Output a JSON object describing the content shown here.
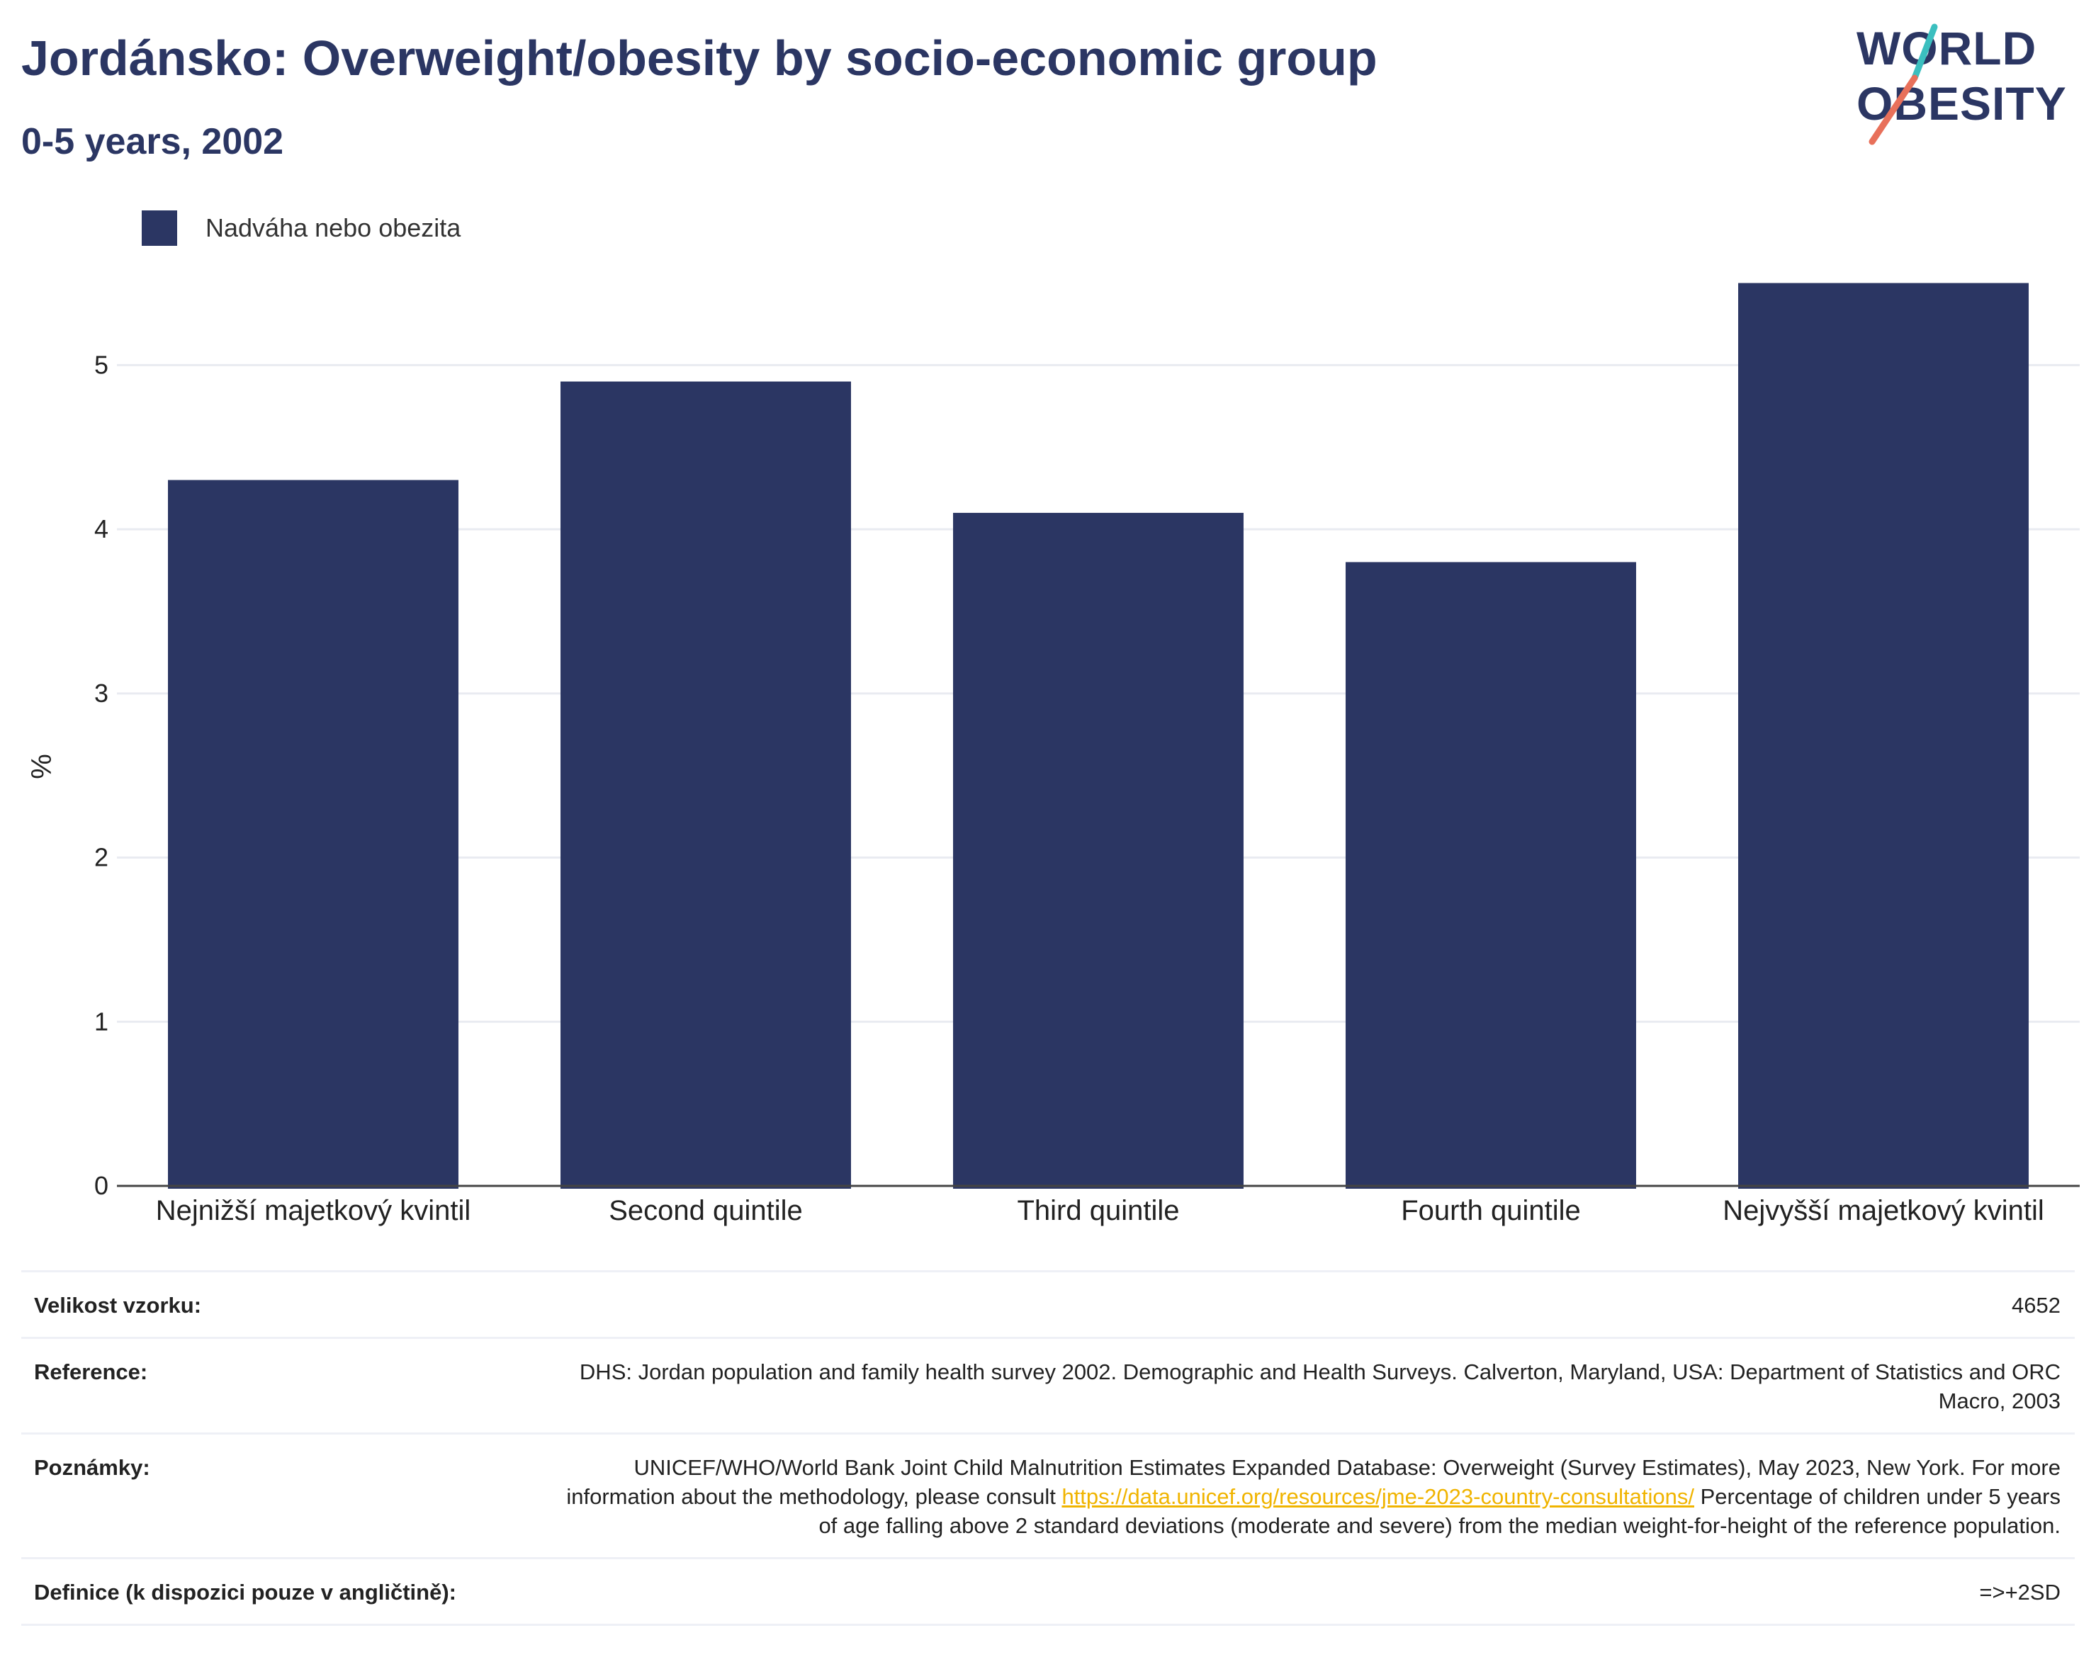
{
  "header": {
    "title": "Jordánsko: Overweight/obesity by socio-economic group",
    "subtitle": "0-5 years, 2002"
  },
  "logo": {
    "line1": "WORLD",
    "line2": "OBESITY",
    "accent_colors": [
      "#3bbfbf",
      "#e8705a"
    ]
  },
  "colors": {
    "bar": "#2b3663",
    "grid": "#e9ebf1",
    "link": "#f0b400"
  },
  "chart_data": {
    "type": "bar",
    "categories": [
      "Nejnižší majetkový kvintil",
      "Second quintile",
      "Third quintile",
      "Fourth quintile",
      "Nejvyšší majetkový kvintil"
    ],
    "series": [
      {
        "name": "Nadváha nebo obezita",
        "values": [
          4.3,
          4.9,
          4.1,
          3.8,
          5.5
        ]
      }
    ],
    "title": "Jordánsko: Overweight/obesity by socio-economic group",
    "subtitle": "0-5 years, 2002",
    "xlabel": "",
    "ylabel": "%",
    "ylim": [
      0,
      5.8
    ],
    "yticks": [
      0,
      1,
      2,
      3,
      4,
      5
    ],
    "grid": true,
    "legend_position": "top-left"
  },
  "info": {
    "sample_size": {
      "label": "Velikost vzorku:",
      "value": "4652"
    },
    "reference": {
      "label": "Reference:",
      "value": "DHS: Jordan population and family health survey 2002. Demographic and Health Surveys. Calverton, Maryland, USA: Department of Statistics and ORC Macro, 2003"
    },
    "notes": {
      "label": "Poznámky:",
      "text_before": "UNICEF/WHO/World Bank Joint Child Malnutrition Estimates Expanded Database: Overweight (Survey Estimates), May 2023, New York. For more information about the methodology, please consult ",
      "link": "https://data.unicef.org/resources/jme-2023-country-consultations/",
      "text_after": " Percentage of children under 5 years of age falling above 2 standard deviations (moderate and severe) from the median weight-for-height of the reference population."
    },
    "definition": {
      "label": "Definice (k dispozici pouze v angličtině):",
      "value": "=>+2SD"
    }
  }
}
